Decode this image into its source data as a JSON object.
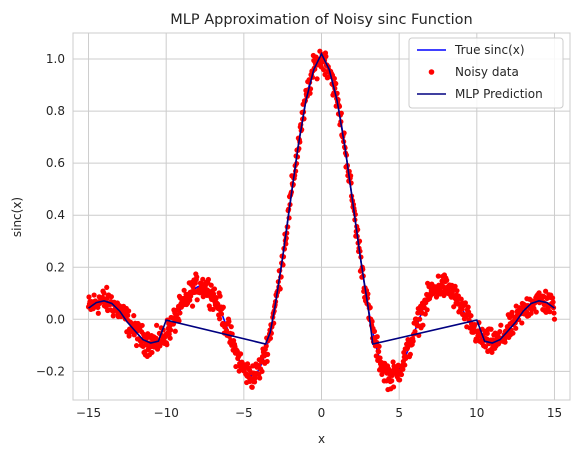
{
  "chart_data": {
    "type": "line",
    "title": "MLP Approximation of Noisy sinc Function",
    "xlabel": "x",
    "ylabel": "sinc(x)",
    "xlim": [
      -16,
      16
    ],
    "ylim": [
      -0.31,
      1.1
    ],
    "xticks": [
      -15,
      -10,
      -5,
      0,
      5,
      10,
      15
    ],
    "yticks": [
      -0.2,
      0.0,
      0.2,
      0.4,
      0.6,
      0.8,
      1.0
    ],
    "xtick_labels": [
      "−15",
      "−10",
      "−5",
      "0",
      "5",
      "10",
      "15"
    ],
    "ytick_labels": [
      "−0.2",
      "0.0",
      "0.2",
      "0.4",
      "0.6",
      "0.8",
      "1.0"
    ],
    "grid": true,
    "legend_position": "top-right",
    "colors": {
      "true": "#0000ff",
      "noisy": "#ff0000",
      "mlp": "#000080",
      "grid": "#cccccc",
      "axes": "#cccccc"
    },
    "series": [
      {
        "name": "True sinc(x)",
        "kind": "line",
        "function": "sin(x)/x",
        "x_range": [
          -15,
          15
        ]
      },
      {
        "name": "Noisy data",
        "kind": "scatter",
        "x_range": [
          -15,
          15
        ],
        "noise_amplitude": 0.03
      },
      {
        "name": "MLP Prediction",
        "kind": "line",
        "x": [
          -15,
          -14.5,
          -14,
          -13.5,
          -13,
          -12.5,
          -12,
          -11.5,
          -11,
          -10.5,
          -10,
          -3.6,
          -3.3,
          -3,
          -2.5,
          -2,
          -1.5,
          -1,
          -0.5,
          0,
          0.5,
          1,
          1.5,
          2,
          2.5,
          3,
          3.3,
          10,
          10.5,
          11,
          11.5,
          12,
          12.5,
          13,
          13.5,
          14,
          14.5,
          15
        ],
        "y": [
          0.043,
          0.064,
          0.071,
          0.061,
          0.032,
          -0.011,
          -0.045,
          -0.078,
          -0.091,
          -0.084,
          -0.003,
          -0.095,
          -0.05,
          0.047,
          0.239,
          0.455,
          0.665,
          0.841,
          0.959,
          1.02,
          0.959,
          0.841,
          0.665,
          0.455,
          0.239,
          0.047,
          -0.095,
          -0.003,
          -0.084,
          -0.091,
          -0.078,
          -0.045,
          -0.011,
          0.032,
          0.061,
          0.071,
          0.064,
          0.043
        ]
      }
    ]
  }
}
